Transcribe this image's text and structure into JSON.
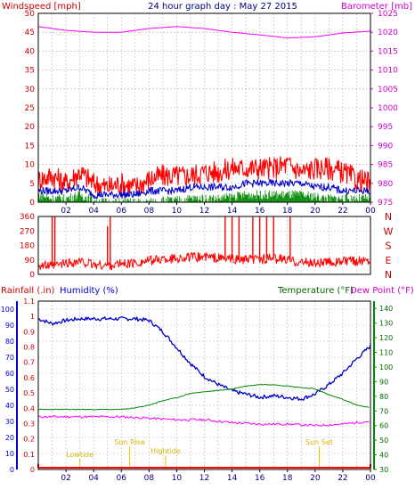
{
  "chart_data": [
    {
      "type": "line",
      "title": "24 hour graph day : May 27 2015",
      "left_axis_label": "Windspeed [mph]",
      "right_axis_label": "Barometer [mb]",
      "x_tick_labels": [
        "02",
        "04",
        "06",
        "08",
        "10",
        "12",
        "14",
        "16",
        "18",
        "20",
        "22",
        "00"
      ],
      "y_left_ticks": [
        0,
        5,
        10,
        15,
        20,
        25,
        30,
        35,
        40,
        45,
        50
      ],
      "y_left_range": [
        0,
        50
      ],
      "y_right_ticks": [
        975,
        980,
        985,
        990,
        995,
        1000,
        1005,
        1010,
        1015,
        1020,
        1025
      ],
      "y_right_range": [
        975,
        1025
      ],
      "series": [
        {
          "axis": "right",
          "color": "#ff00ff",
          "points": [
            [
              0,
              1021.5
            ],
            [
              2,
              1020.5
            ],
            [
              4,
              1020.0
            ],
            [
              6,
              1020.0
            ],
            [
              8,
              1021.0
            ],
            [
              10,
              1021.5
            ],
            [
              12,
              1021.0
            ],
            [
              14,
              1020.0
            ],
            [
              16,
              1019.3
            ],
            [
              18,
              1018.5
            ],
            [
              20,
              1018.8
            ],
            [
              22,
              1019.8
            ],
            [
              24,
              1020.3
            ]
          ]
        },
        {
          "axis": "left",
          "color": "#ff0000",
          "points": [
            [
              0,
              6
            ],
            [
              1,
              7
            ],
            [
              2,
              5
            ],
            [
              3,
              8
            ],
            [
              4,
              5
            ],
            [
              5,
              4
            ],
            [
              6,
              5
            ],
            [
              7,
              4
            ],
            [
              8,
              6
            ],
            [
              9,
              7
            ],
            [
              10,
              7
            ],
            [
              11,
              7
            ],
            [
              12,
              8
            ],
            [
              13,
              8
            ],
            [
              14,
              9
            ],
            [
              15,
              9
            ],
            [
              16,
              9
            ],
            [
              17,
              9
            ],
            [
              18,
              10
            ],
            [
              19,
              8
            ],
            [
              20,
              9
            ],
            [
              21,
              9
            ],
            [
              22,
              8
            ],
            [
              23,
              6
            ],
            [
              24,
              5
            ]
          ]
        },
        {
          "axis": "left",
          "color": "#0000cc",
          "points": [
            [
              0,
              3
            ],
            [
              1,
              3
            ],
            [
              2,
              3
            ],
            [
              3,
              4
            ],
            [
              4,
              2
            ],
            [
              5,
              2
            ],
            [
              6,
              2
            ],
            [
              7,
              2
            ],
            [
              8,
              3
            ],
            [
              9,
              3
            ],
            [
              10,
              3
            ],
            [
              11,
              4
            ],
            [
              12,
              4
            ],
            [
              13,
              4
            ],
            [
              14,
              4
            ],
            [
              15,
              5
            ],
            [
              16,
              5
            ],
            [
              17,
              5
            ],
            [
              18,
              5
            ],
            [
              19,
              5
            ],
            [
              20,
              4
            ],
            [
              21,
              4
            ],
            [
              22,
              3
            ],
            [
              23,
              3
            ],
            [
              24,
              3
            ]
          ]
        },
        {
          "axis": "left",
          "color": "#008800",
          "points": [
            [
              0,
              2
            ],
            [
              1,
              1
            ],
            [
              2,
              1
            ],
            [
              3,
              2
            ],
            [
              4,
              0.5
            ],
            [
              5,
              0
            ],
            [
              6,
              0
            ],
            [
              7,
              0
            ],
            [
              8,
              0
            ],
            [
              9,
              0.5
            ],
            [
              10,
              0.5
            ],
            [
              11,
              1
            ],
            [
              12,
              1
            ],
            [
              13,
              1
            ],
            [
              14,
              1.5
            ],
            [
              15,
              2
            ],
            [
              16,
              2
            ],
            [
              17,
              2
            ],
            [
              18,
              2
            ],
            [
              19,
              2
            ],
            [
              20,
              1.5
            ],
            [
              21,
              1
            ],
            [
              22,
              1
            ],
            [
              23,
              1
            ],
            [
              24,
              1
            ]
          ]
        }
      ]
    },
    {
      "type": "line",
      "y_left_ticks": [
        0,
        90,
        180,
        270,
        360
      ],
      "y_left_range": [
        0,
        360
      ],
      "right_labels": [
        "N",
        "W",
        "S",
        "E",
        "N"
      ],
      "series": [
        {
          "color": "#ff0000",
          "points": [
            [
              0,
              60
            ],
            [
              1,
              50
            ],
            [
              2,
              70
            ],
            [
              3,
              80
            ],
            [
              4,
              60
            ],
            [
              5,
              55
            ],
            [
              6,
              65
            ],
            [
              7,
              70
            ],
            [
              8,
              85
            ],
            [
              9,
              95
            ],
            [
              10,
              100
            ],
            [
              11,
              105
            ],
            [
              12,
              110
            ],
            [
              13,
              100
            ],
            [
              14,
              95
            ],
            [
              15,
              90
            ],
            [
              16,
              95
            ],
            [
              17,
              100
            ],
            [
              18,
              90
            ],
            [
              19,
              75
            ],
            [
              20,
              70
            ],
            [
              21,
              75
            ],
            [
              22,
              80
            ],
            [
              23,
              85
            ],
            [
              24,
              90
            ]
          ],
          "spikes": [
            [
              1.0,
              360
            ],
            [
              1.2,
              360
            ],
            [
              5.0,
              300
            ],
            [
              5.2,
              360
            ],
            [
              13.5,
              360
            ],
            [
              14.0,
              360
            ],
            [
              14.5,
              360
            ],
            [
              15.5,
              360
            ],
            [
              16.0,
              360
            ],
            [
              16.5,
              360
            ],
            [
              17.0,
              360
            ],
            [
              18.2,
              360
            ]
          ]
        }
      ]
    },
    {
      "type": "line",
      "left_axis_label": "Rainfall (.in)",
      "left2_axis_label": "Humidity (%)",
      "right_axis_label": "Temperature (°F)",
      "right2_axis_label": "Dew Point (°F)",
      "x_tick_labels": [
        "02",
        "04",
        "06",
        "08",
        "10",
        "12",
        "14",
        "16",
        "18",
        "20",
        "22",
        "00"
      ],
      "y_rain_ticks": [
        0,
        0.1,
        0.2,
        0.3,
        0.4,
        0.5,
        0.6,
        0.7,
        0.8,
        0.9,
        1,
        1.1
      ],
      "y_hum_ticks": [
        0,
        10,
        20,
        30,
        40,
        50,
        60,
        70,
        80,
        90,
        100
      ],
      "y_temp_ticks": [
        30,
        40,
        50,
        60,
        70,
        80,
        90,
        100,
        110,
        120,
        130,
        140
      ],
      "y_hum_range": [
        0,
        105
      ],
      "y_temp_range": [
        30,
        145
      ],
      "annotations": [
        {
          "label": "Lowtide",
          "hour": 3.0,
          "level": "low"
        },
        {
          "label": "Sun Rise",
          "hour": 6.6,
          "level": "high"
        },
        {
          "label": "Hightide",
          "hour": 9.2,
          "level": "mid"
        },
        {
          "label": "Sun Set",
          "hour": 20.3,
          "level": "high"
        }
      ],
      "series": [
        {
          "name": "Humidity (%)",
          "axis": "hum",
          "color": "#0000cc",
          "points": [
            [
              0,
              94
            ],
            [
              1,
              91
            ],
            [
              2,
              93
            ],
            [
              3,
              94
            ],
            [
              4,
              94
            ],
            [
              5,
              94
            ],
            [
              6,
              94
            ],
            [
              7,
              94
            ],
            [
              8,
              93
            ],
            [
              9,
              86
            ],
            [
              10,
              76
            ],
            [
              11,
              66
            ],
            [
              12,
              58
            ],
            [
              13,
              53
            ],
            [
              14,
              49
            ],
            [
              15,
              47
            ],
            [
              16,
              45
            ],
            [
              17,
              46
            ],
            [
              18,
              45
            ],
            [
              19,
              44
            ],
            [
              20,
              47
            ],
            [
              21,
              53
            ],
            [
              22,
              60
            ],
            [
              23,
              69
            ],
            [
              24,
              77
            ]
          ]
        },
        {
          "name": "Dew Point (°F)",
          "axis": "temp",
          "color": "#ff00ff",
          "points": [
            [
              0,
              66
            ],
            [
              2,
              66
            ],
            [
              4,
              66
            ],
            [
              6,
              66
            ],
            [
              8,
              65
            ],
            [
              10,
              64
            ],
            [
              12,
              64
            ],
            [
              14,
              62
            ],
            [
              16,
              61
            ],
            [
              18,
              61
            ],
            [
              20,
              60
            ],
            [
              22,
              61
            ],
            [
              24,
              63
            ]
          ]
        },
        {
          "name": "Temperature (°F)",
          "axis": "temp",
          "color": "#008800",
          "points": [
            [
              0,
              71
            ],
            [
              2,
              71
            ],
            [
              4,
              71
            ],
            [
              6,
              71
            ],
            [
              7,
              72
            ],
            [
              8,
              74
            ],
            [
              9,
              77
            ],
            [
              10,
              79
            ],
            [
              11,
              82
            ],
            [
              12,
              83
            ],
            [
              13,
              84
            ],
            [
              14,
              85
            ],
            [
              15,
              87
            ],
            [
              16,
              88
            ],
            [
              17,
              88
            ],
            [
              18,
              87
            ],
            [
              19,
              86
            ],
            [
              20,
              85
            ],
            [
              21,
              81
            ],
            [
              22,
              78
            ],
            [
              23,
              74
            ],
            [
              24,
              72
            ]
          ]
        },
        {
          "name": "Rainfall (.in)",
          "axis": "rain",
          "color": "#ff0000",
          "points": [
            [
              0,
              0
            ],
            [
              24,
              0
            ]
          ]
        }
      ]
    }
  ]
}
